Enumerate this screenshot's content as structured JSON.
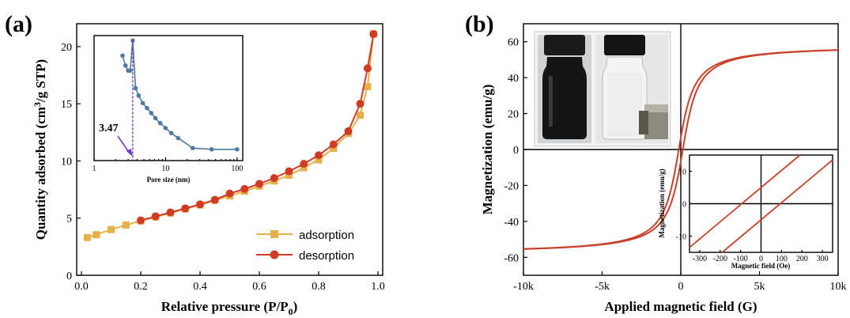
{
  "colors": {
    "adsorption": "#e6b04a",
    "desorption": "#cf3b24",
    "inset_line": "#4f7a9e",
    "hysteresis": "#c8412a",
    "marker_line": "#6b3fc4"
  },
  "panels": {
    "a": {
      "label": "(a)",
      "xlabel": "Relative pressure (P/P",
      "xlabel_sub": "0",
      "xlabel_end": ")",
      "ylabel_part1": "Quantity adsorbed (cm",
      "ylabel_sup": "3",
      "ylabel_part2": "/g STP)"
    },
    "b": {
      "label": "(b)",
      "xlabel": "Applied magnetic field (G)",
      "ylabel": "Magnetization (emu/g)"
    }
  },
  "legend": {
    "adsorption": "adsorption",
    "desorption": "desorption"
  },
  "photo": {
    "description_icon_left": "black-liquid-vial-icon",
    "description_icon_right": "clear-liquid-vial-with-magnet-icon"
  },
  "chart_data": [
    {
      "type": "line",
      "title": "",
      "xlabel": "Relative pressure (P/P0)",
      "ylabel": "Quantity adsorbed (cm3/g STP)",
      "xlim": [
        0.0,
        1.0
      ],
      "ylim": [
        0,
        22
      ],
      "xticks": [
        0.0,
        0.2,
        0.4,
        0.6,
        0.8,
        1.0
      ],
      "xtick_labels": [
        "0.0",
        "0.2",
        "0.4",
        "0.6",
        "0.8",
        "1.0"
      ],
      "yticks": [
        0,
        5,
        10,
        15,
        20
      ],
      "ytick_labels": [
        "0",
        "5",
        "10",
        "15",
        "20"
      ],
      "legend_position": "bottom-right",
      "series": [
        {
          "name": "adsorption",
          "marker": "square",
          "x": [
            0.02,
            0.05,
            0.1,
            0.15,
            0.2,
            0.25,
            0.3,
            0.35,
            0.4,
            0.45,
            0.5,
            0.55,
            0.6,
            0.65,
            0.7,
            0.75,
            0.8,
            0.85,
            0.9,
            0.94,
            0.965,
            0.985
          ],
          "y": [
            3.3,
            3.55,
            4.0,
            4.4,
            4.75,
            5.1,
            5.45,
            5.8,
            6.15,
            6.55,
            6.95,
            7.35,
            7.8,
            8.25,
            8.75,
            9.4,
            10.1,
            11.1,
            12.4,
            14.0,
            16.5,
            21.1
          ]
        },
        {
          "name": "desorption",
          "marker": "circle",
          "x": [
            0.2,
            0.25,
            0.3,
            0.35,
            0.4,
            0.45,
            0.5,
            0.55,
            0.6,
            0.65,
            0.7,
            0.75,
            0.8,
            0.85,
            0.9,
            0.94,
            0.965,
            0.985
          ],
          "y": [
            4.8,
            5.15,
            5.5,
            5.85,
            6.2,
            6.6,
            7.15,
            7.55,
            8.0,
            8.5,
            9.1,
            9.75,
            10.5,
            11.45,
            12.6,
            15.0,
            18.1,
            21.1
          ]
        }
      ]
    },
    {
      "type": "line",
      "title": "",
      "inset_of": "a",
      "xlabel": "Pore size (nm)",
      "ylabel": "",
      "x_scale": "log",
      "xlim": [
        1,
        120
      ],
      "ylim": [
        0,
        1
      ],
      "xticks": [
        1,
        10,
        100
      ],
      "xtick_labels": [
        "1",
        "10",
        "100"
      ],
      "annotation": "3.47",
      "annotation_x": 3.47,
      "series": [
        {
          "name": "",
          "marker": "circle",
          "x": [
            2.5,
            2.75,
            3.0,
            3.2,
            3.47,
            3.8,
            4.2,
            4.8,
            5.5,
            6.3,
            7.2,
            8.4,
            10.0,
            12.0,
            15.0,
            24.0,
            44.0,
            100.0
          ],
          "y": [
            0.84,
            0.76,
            0.72,
            0.72,
            0.96,
            0.58,
            0.52,
            0.46,
            0.42,
            0.38,
            0.34,
            0.3,
            0.26,
            0.22,
            0.18,
            0.1,
            0.09,
            0.09
          ]
        }
      ]
    },
    {
      "type": "line",
      "title": "",
      "xlabel": "Applied magnetic field (G)",
      "ylabel": "Magnetization (emu/g)",
      "xlim": [
        -10000,
        10000
      ],
      "ylim": [
        -70,
        70
      ],
      "xticks": [
        -10000,
        -5000,
        0,
        5000,
        10000
      ],
      "xtick_labels": [
        "-10k",
        "-5k",
        "0",
        "5k",
        "10k"
      ],
      "yticks": [
        -60,
        -40,
        -20,
        0,
        20,
        40,
        60
      ],
      "ytick_labels": [
        "-60",
        "-40",
        "-20",
        "0",
        "20",
        "40",
        "60"
      ],
      "saturation_magnetization": 58,
      "coercivity": 130,
      "series": [
        {
          "name": "",
          "kind": "hysteresis-loop"
        }
      ]
    },
    {
      "type": "line",
      "title": "",
      "inset_of": "b",
      "xlabel": "Magnetic field (Oe)",
      "ylabel": "Magnetization (emu/g)",
      "xlim": [
        -350,
        350
      ],
      "ylim": [
        -15,
        15
      ],
      "xticks": [
        -300,
        -200,
        -100,
        0,
        100,
        200,
        300
      ],
      "xtick_labels": [
        "-300",
        "-200",
        "-100",
        "0",
        "100",
        "200",
        "300"
      ],
      "yticks": [
        -10,
        0,
        10
      ],
      "ytick_labels": [
        "-10",
        "0",
        "10"
      ],
      "series": [
        {
          "name": "",
          "kind": "upper-branch",
          "x": [
            -350,
            190
          ],
          "y": [
            -13.5,
            15
          ]
        },
        {
          "name": "",
          "kind": "lower-branch",
          "x": [
            -190,
            350
          ],
          "y": [
            -15,
            13.5
          ]
        }
      ]
    }
  ]
}
